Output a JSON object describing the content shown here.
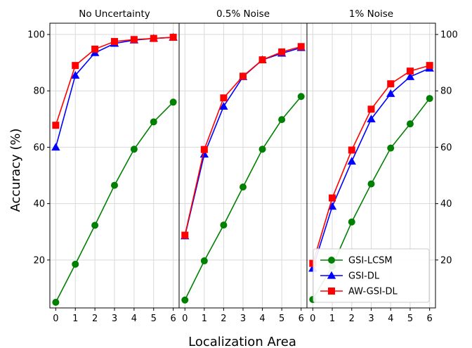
{
  "chart_data": {
    "type": "line",
    "xlabel": "Localization Area",
    "ylabel": "Accuracy (%)",
    "x": [
      0,
      1,
      2,
      3,
      4,
      5,
      6
    ],
    "xlim": [
      -0.3,
      6.3
    ],
    "ylim": [
      3,
      104
    ],
    "yticks": [
      20,
      40,
      60,
      80,
      100
    ],
    "grid": true,
    "legend_placement": "lower-right",
    "series_styles": [
      {
        "name": "GSI-LCSM",
        "color": "#008000",
        "marker": "circle"
      },
      {
        "name": "GSI-DL",
        "color": "#0000ff",
        "marker": "triangle"
      },
      {
        "name": "AW-GSI-DL",
        "color": "#ff0000",
        "marker": "square"
      }
    ],
    "panels": [
      {
        "title": "No Uncertainty",
        "series": [
          {
            "name": "GSI-LCSM",
            "values": [
              5.0,
              18.5,
              32.3,
              46.5,
              59.3,
              69.0,
              76.0
            ]
          },
          {
            "name": "GSI-DL",
            "values": [
              60.0,
              85.5,
              93.5,
              96.8,
              98.0,
              98.6,
              99.0
            ]
          },
          {
            "name": "AW-GSI-DL",
            "values": [
              67.8,
              89.0,
              94.8,
              97.5,
              98.2,
              98.6,
              99.0
            ]
          }
        ]
      },
      {
        "title": "0.5% Noise",
        "series": [
          {
            "name": "GSI-LCSM",
            "values": [
              5.8,
              19.7,
              32.4,
              45.9,
              59.3,
              69.8,
              78.0
            ]
          },
          {
            "name": "GSI-DL",
            "values": [
              28.5,
              57.5,
              74.5,
              85.0,
              91.0,
              93.3,
              95.3
            ]
          },
          {
            "name": "AW-GSI-DL",
            "values": [
              28.8,
              59.2,
              77.5,
              85.2,
              91.0,
              93.8,
              95.7
            ]
          }
        ]
      },
      {
        "title": "1% Noise",
        "series": [
          {
            "name": "GSI-LCSM",
            "values": [
              6.0,
              17.8,
              33.5,
              47.0,
              59.7,
              68.3,
              77.3
            ]
          },
          {
            "name": "GSI-DL",
            "values": [
              17.0,
              39.0,
              55.0,
              70.0,
              79.0,
              85.0,
              88.0
            ]
          },
          {
            "name": "AW-GSI-DL",
            "values": [
              18.8,
              42.0,
              59.0,
              73.5,
              82.5,
              87.0,
              89.0
            ]
          }
        ]
      }
    ]
  }
}
